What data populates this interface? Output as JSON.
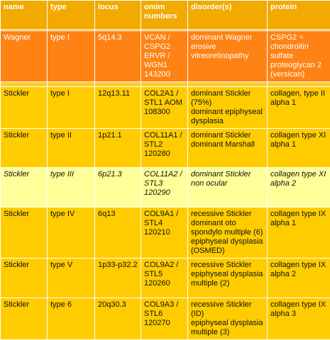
{
  "table": {
    "header": [
      "name",
      "type",
      "locus",
      "omim numbers",
      "disorder(s)",
      "protein"
    ],
    "rows": [
      [
        "Wagner",
        "type I",
        "5q14.3",
        "VCAN / CSPG2 ERVR / WGN1 143200",
        [
          "dominant Wagner erosive vitreoretinopathy"
        ],
        "CSPG2 = chondroitin sulfate proteoglycan 2 (versican)"
      ],
      [
        "Stickler",
        "type I",
        "12q13.11",
        "COL2A1 / STL1 AOM 108300",
        [
          "dominant Stickler (75%)",
          "dominant epiphyseal dysplasia"
        ],
        "collagen, type II alpha 1"
      ],
      [
        "Stickler",
        "type II",
        "1p21.1",
        "COL11A1 / STL2 120280",
        [
          "dominant Stickler",
          "dominant Marshall"
        ],
        "collagen type XI alpha 1"
      ],
      [
        "Stickler",
        "type III",
        "6p21.3",
        "COL11A2 / STL3 120290",
        [
          "dominant Stickler non ocular"
        ],
        "collagen type XI alpha 2"
      ],
      [
        "Stickler",
        "type IV",
        "6q13",
        "COL9A1 / STL4 120210",
        [
          "recessive Stickler",
          "dominant oto spondylo multiple (6) epiphyseal dysplasia (OSMED)"
        ],
        "collagen type IX alpha 1"
      ],
      [
        "Stickler",
        "type V",
        "1p33-p32.2",
        "COL9A2 / STL5 120260",
        [
          "recessive Stickler",
          "epiphyseal dysplasia multiple (2)"
        ],
        "collagen type IX alpha 2"
      ],
      [
        "Stickler",
        "type 6",
        "20q30.3",
        "COL9A3 / STL6 120270",
        [
          "recessive Stickler (ID)",
          "epiphyseal dysplasia multiple (3)"
        ],
        "collagen type IX alpha 3"
      ]
    ]
  }
}
